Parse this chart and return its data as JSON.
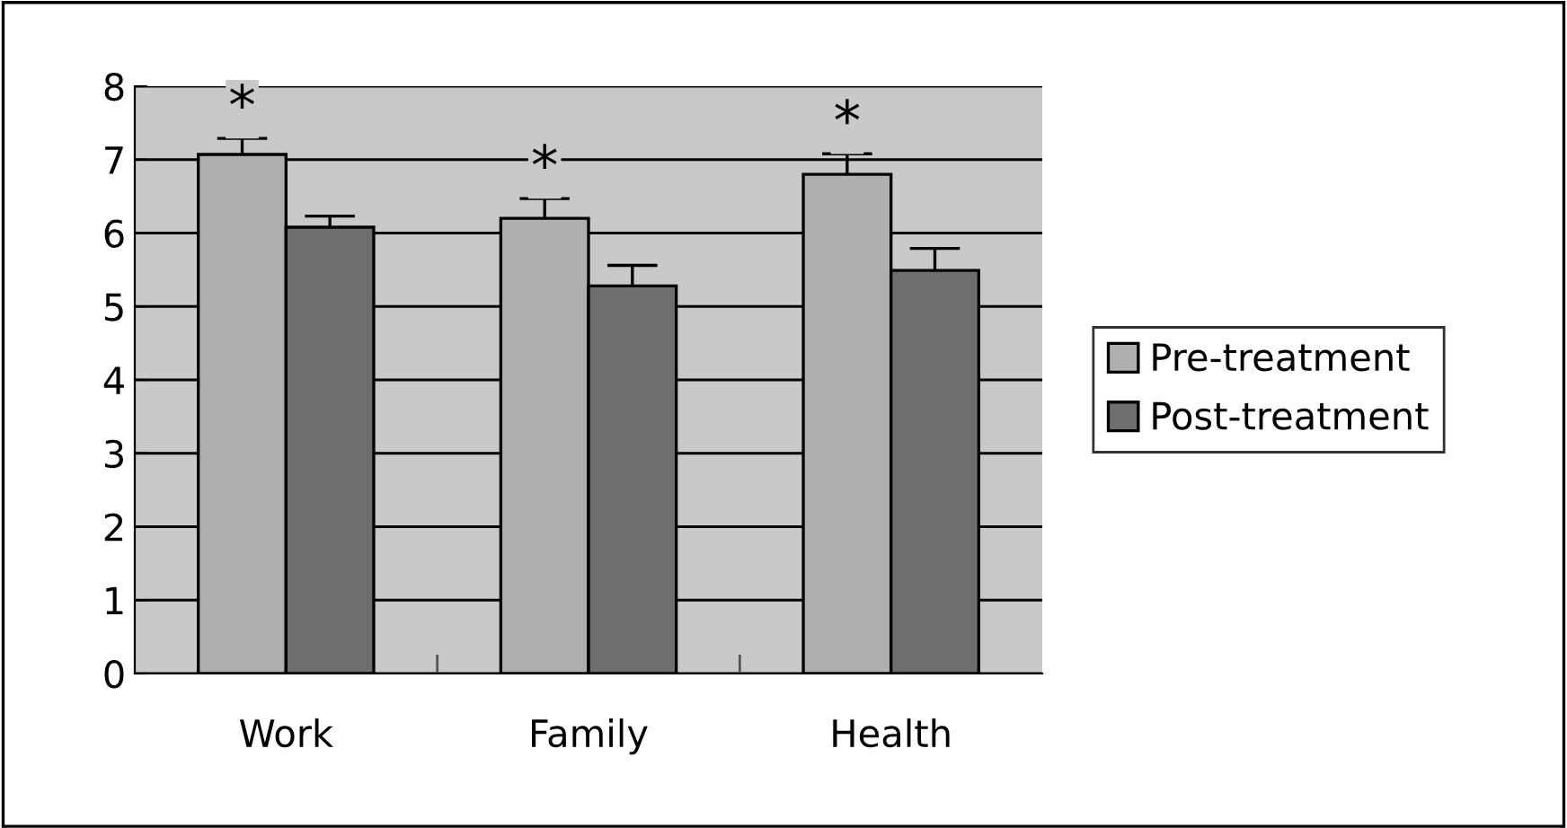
{
  "chart_data": {
    "type": "bar",
    "categories": [
      "Work",
      "Family",
      "Health"
    ],
    "series": [
      {
        "name": "Pre-treatment",
        "color": "#aeafb1",
        "values": [
          7.07,
          6.2,
          6.8
        ],
        "errors": [
          0.22,
          0.27,
          0.28
        ]
      },
      {
        "name": "Post-treatment",
        "color": "#6d6e70",
        "values": [
          6.08,
          5.28,
          5.49
        ],
        "errors": [
          0.15,
          0.28,
          0.3
        ]
      }
    ],
    "annotations": [
      "*",
      "*",
      "*"
    ],
    "ylim": [
      0,
      8
    ],
    "yticks": [
      0,
      1,
      2,
      3,
      4,
      5,
      6,
      7,
      8
    ],
    "grid": "y",
    "legend": "right"
  }
}
